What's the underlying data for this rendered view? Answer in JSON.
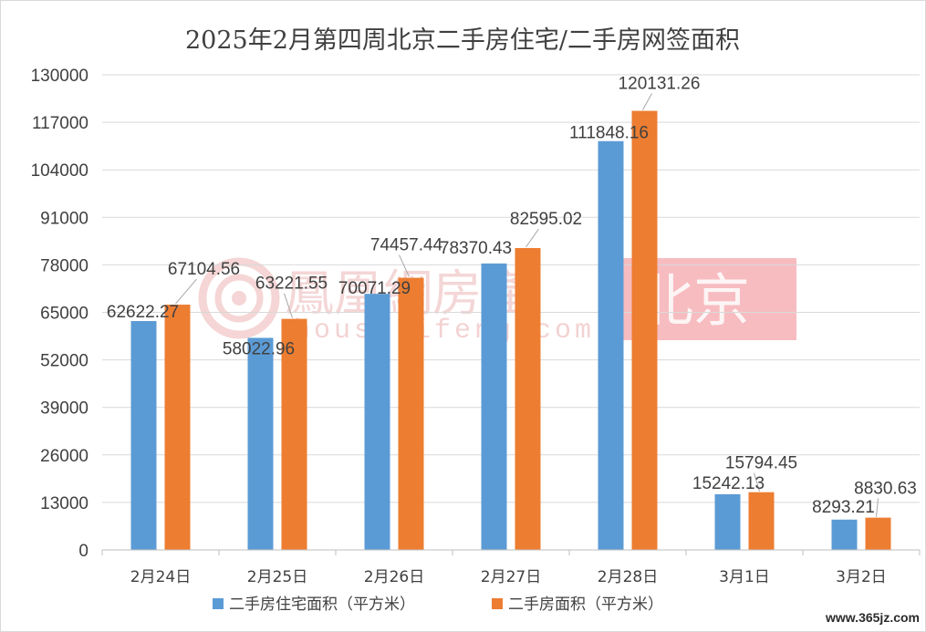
{
  "chart_data": {
    "type": "bar",
    "title": "2025年2月第四周北京二手房住宅/二手房网签面积",
    "categories": [
      "2月24日",
      "2月25日",
      "2月26日",
      "2月27日",
      "2月28日",
      "3月1日",
      "3月2日"
    ],
    "series": [
      {
        "name": "二手房住宅面积（平方米）",
        "color": "#5b9bd5",
        "values": [
          62622.27,
          58022.96,
          70071.29,
          78370.43,
          111848.16,
          15242.13,
          8293.21
        ]
      },
      {
        "name": "二手房面积（平方米）",
        "color": "#ed7d31",
        "values": [
          67104.56,
          63221.55,
          74457.44,
          82595.02,
          120131.26,
          15794.45,
          8830.63
        ]
      }
    ],
    "value_labels": [
      [
        "62622.27",
        "58022.96",
        "70071.29",
        "78370.43",
        "111848.16",
        "15242.13",
        "8293.21"
      ],
      [
        "67104.56",
        "63221.55",
        "74457.44",
        "82595.02",
        "120131.26",
        "15794.45",
        "8830.63"
      ]
    ],
    "yticks": [
      "0",
      "13000",
      "26000",
      "39000",
      "52000",
      "65000",
      "78000",
      "91000",
      "104000",
      "117000",
      "130000"
    ],
    "ylim": [
      0,
      130000
    ],
    "grid": true,
    "legend_position": "bottom"
  },
  "watermark": {
    "cn": "鳳凰網房產",
    "en": "house.ifeng.com",
    "badge": "北京",
    "badge_color": "#e8404a"
  },
  "corner_mark": "www.365jz.com"
}
